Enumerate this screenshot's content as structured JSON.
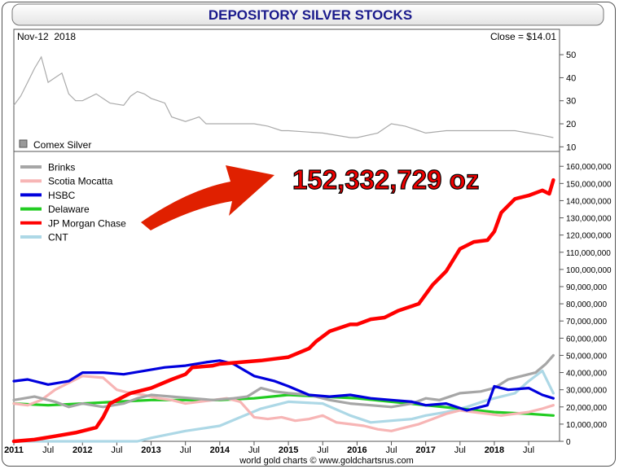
{
  "chart_data": [
    {
      "type": "line",
      "panel": "price",
      "date_label": "Nov-12  2018",
      "close_label": "Close = $14.01",
      "legend": [
        {
          "name": "Comex Silver",
          "color": "#999999"
        }
      ],
      "ylim": [
        8,
        55
      ],
      "yticks": [
        10,
        20,
        30,
        40,
        50
      ],
      "series": [
        {
          "name": "Comex Silver",
          "color": "#aaaaaa",
          "x": [
            2011.0,
            2011.1,
            2011.2,
            2011.3,
            2011.4,
            2011.5,
            2011.6,
            2011.7,
            2011.8,
            2011.9,
            2012.0,
            2012.2,
            2012.4,
            2012.6,
            2012.7,
            2012.8,
            2012.9,
            2013.0,
            2013.1,
            2013.2,
            2013.3,
            2013.5,
            2013.6,
            2013.7,
            2013.8,
            2014.0,
            2014.3,
            2014.5,
            2014.7,
            2014.9,
            2015.0,
            2015.5,
            2015.9,
            2016.0,
            2016.3,
            2016.5,
            2016.7,
            2016.9,
            2017.0,
            2017.3,
            2017.5,
            2017.7,
            2018.0,
            2018.3,
            2018.5,
            2018.7,
            2018.86
          ],
          "values": [
            28,
            32,
            38,
            44,
            49,
            38,
            40,
            42,
            33,
            30,
            30,
            33,
            29,
            28,
            32,
            34,
            33,
            31,
            30,
            29,
            23,
            21,
            22,
            23,
            20,
            20,
            20,
            20,
            19,
            17,
            17,
            16,
            14,
            14,
            16,
            20,
            19,
            17,
            16,
            17,
            17,
            17,
            17,
            17,
            16,
            15,
            14
          ]
        }
      ]
    },
    {
      "type": "line",
      "panel": "stocks",
      "title": "DEPOSITORY SILVER STOCKS",
      "annotation": "152,332,729 oz",
      "ylim": [
        0,
        162000000
      ],
      "yticks": [
        "0",
        "10,000,000",
        "20,000,000",
        "30,000,000",
        "40,000,000",
        "50,000,000",
        "60,000,000",
        "70,000,000",
        "80,000,000",
        "90,000,000",
        "100,000,000",
        "110,000,000",
        "120,000,000",
        "130,000,000",
        "140,000,000",
        "150,000,000",
        "160,000,000"
      ],
      "ytick_values": [
        0,
        10000000,
        20000000,
        30000000,
        40000000,
        50000000,
        60000000,
        70000000,
        80000000,
        90000000,
        100000000,
        110000000,
        120000000,
        130000000,
        140000000,
        150000000,
        160000000
      ],
      "xlim": [
        2011.0,
        2018.95
      ],
      "xticks": [
        {
          "label": "2011",
          "x": 2011.0,
          "bold": true
        },
        {
          "label": "Jul",
          "x": 2011.5,
          "bold": false
        },
        {
          "label": "2012",
          "x": 2012.0,
          "bold": true
        },
        {
          "label": "Jul",
          "x": 2012.5,
          "bold": false
        },
        {
          "label": "2013",
          "x": 2013.0,
          "bold": true
        },
        {
          "label": "Jul",
          "x": 2013.5,
          "bold": false
        },
        {
          "label": "2014",
          "x": 2014.0,
          "bold": true
        },
        {
          "label": "Jul",
          "x": 2014.5,
          "bold": false
        },
        {
          "label": "2015",
          "x": 2015.0,
          "bold": true
        },
        {
          "label": "Jul",
          "x": 2015.5,
          "bold": false
        },
        {
          "label": "2016",
          "x": 2016.0,
          "bold": true
        },
        {
          "label": "Jul",
          "x": 2016.5,
          "bold": false
        },
        {
          "label": "2017",
          "x": 2017.0,
          "bold": true
        },
        {
          "label": "Jul",
          "x": 2017.5,
          "bold": false
        },
        {
          "label": "2018",
          "x": 2018.0,
          "bold": true
        },
        {
          "label": "Jul",
          "x": 2018.5,
          "bold": false
        }
      ],
      "series": [
        {
          "name": "Brinks",
          "color": "#a6a6a6",
          "x": [
            2011.0,
            2011.3,
            2011.6,
            2011.8,
            2012.0,
            2012.3,
            2012.6,
            2012.8,
            2013.0,
            2013.3,
            2013.6,
            2013.9,
            2014.2,
            2014.4,
            2014.6,
            2014.8,
            2015.0,
            2015.3,
            2015.6,
            2015.9,
            2016.2,
            2016.5,
            2016.8,
            2017.0,
            2017.2,
            2017.5,
            2017.8,
            2018.0,
            2018.2,
            2018.4,
            2018.6,
            2018.75,
            2018.86
          ],
          "values": [
            24000000,
            26000000,
            23000000,
            20000000,
            22000000,
            20000000,
            22000000,
            25000000,
            27000000,
            26000000,
            25000000,
            24000000,
            25000000,
            26000000,
            31000000,
            29000000,
            28000000,
            27000000,
            24000000,
            22000000,
            21000000,
            20000000,
            22000000,
            25000000,
            24000000,
            28000000,
            29000000,
            31000000,
            36000000,
            38000000,
            40000000,
            45000000,
            50000000
          ]
        },
        {
          "name": "Scotia Mocatta",
          "color": "#f7b5b5",
          "x": [
            2011.0,
            2011.2,
            2011.4,
            2011.6,
            2011.8,
            2012.0,
            2012.3,
            2012.5,
            2012.7,
            2012.9,
            2013.1,
            2013.3,
            2013.5,
            2013.7,
            2013.9,
            2014.1,
            2014.3,
            2014.5,
            2014.7,
            2014.9,
            2015.1,
            2015.3,
            2015.5,
            2015.7,
            2015.9,
            2016.1,
            2016.3,
            2016.5,
            2016.7,
            2016.9,
            2017.1,
            2017.3,
            2017.5,
            2017.7,
            2017.9,
            2018.1,
            2018.3,
            2018.5,
            2018.7,
            2018.86
          ],
          "values": [
            22000000,
            21000000,
            24000000,
            30000000,
            34000000,
            38000000,
            37000000,
            30000000,
            28000000,
            27000000,
            25000000,
            24000000,
            22000000,
            23000000,
            24000000,
            25000000,
            23000000,
            14000000,
            13000000,
            14000000,
            12000000,
            13000000,
            15000000,
            11000000,
            10000000,
            9000000,
            7000000,
            6000000,
            8000000,
            10000000,
            13000000,
            16000000,
            18000000,
            17000000,
            16000000,
            15000000,
            16000000,
            17000000,
            19000000,
            21000000
          ]
        },
        {
          "name": "HSBC",
          "color": "#0000dd",
          "x": [
            2011.0,
            2011.2,
            2011.5,
            2011.8,
            2012.0,
            2012.3,
            2012.6,
            2012.9,
            2013.2,
            2013.5,
            2013.8,
            2014.0,
            2014.2,
            2014.5,
            2014.8,
            2015.0,
            2015.3,
            2015.6,
            2015.9,
            2016.2,
            2016.5,
            2016.8,
            2017.0,
            2017.3,
            2017.6,
            2017.9,
            2018.0,
            2018.2,
            2018.5,
            2018.7,
            2018.86
          ],
          "values": [
            35000000,
            36000000,
            33000000,
            35000000,
            40000000,
            40000000,
            39000000,
            41000000,
            43000000,
            44000000,
            46000000,
            47000000,
            45000000,
            38000000,
            35000000,
            32000000,
            27000000,
            26000000,
            27000000,
            25000000,
            24000000,
            23000000,
            21000000,
            22000000,
            18000000,
            21000000,
            32000000,
            30000000,
            31000000,
            27000000,
            25000000
          ]
        },
        {
          "name": "Delaware",
          "color": "#22cc22",
          "x": [
            2011.0,
            2011.5,
            2012.0,
            2012.5,
            2013.0,
            2013.5,
            2014.0,
            2014.5,
            2015.0,
            2015.5,
            2016.0,
            2016.5,
            2017.0,
            2017.5,
            2018.0,
            2018.5,
            2018.86
          ],
          "values": [
            22000000,
            21000000,
            22000000,
            23000000,
            24000000,
            24000000,
            24000000,
            25000000,
            27000000,
            26000000,
            25000000,
            23000000,
            21000000,
            19000000,
            17000000,
            16000000,
            15000000
          ]
        },
        {
          "name": "JP Morgan Chase",
          "color": "#ff0000",
          "x": [
            2011.0,
            2011.3,
            2011.6,
            2011.9,
            2012.2,
            2012.3,
            2012.4,
            2012.7,
            2013.0,
            2013.3,
            2013.5,
            2013.6,
            2013.9,
            2014.0,
            2014.3,
            2014.6,
            2014.8,
            2015.0,
            2015.3,
            2015.4,
            2015.6,
            2015.9,
            2016.0,
            2016.2,
            2016.4,
            2016.6,
            2016.9,
            2017.1,
            2017.3,
            2017.5,
            2017.7,
            2017.9,
            2018.0,
            2018.1,
            2018.3,
            2018.5,
            2018.7,
            2018.8,
            2018.86
          ],
          "values": [
            0,
            1000000,
            3000000,
            5000000,
            8000000,
            14000000,
            22000000,
            28000000,
            31000000,
            36000000,
            39000000,
            43000000,
            44000000,
            45000000,
            46000000,
            47000000,
            48000000,
            49000000,
            54000000,
            58000000,
            64000000,
            68000000,
            68000000,
            71000000,
            72000000,
            76000000,
            80000000,
            91000000,
            99000000,
            112000000,
            116000000,
            117000000,
            122000000,
            133000000,
            141000000,
            143000000,
            146000000,
            144000000,
            152000000
          ]
        },
        {
          "name": "CNT",
          "color": "#add8e6",
          "x": [
            2011.0,
            2012.0,
            2012.8,
            2013.0,
            2013.5,
            2014.0,
            2014.3,
            2014.6,
            2015.0,
            2015.5,
            2015.9,
            2016.2,
            2016.5,
            2016.8,
            2017.0,
            2017.3,
            2017.6,
            2017.9,
            2018.1,
            2018.3,
            2018.5,
            2018.7,
            2018.86
          ],
          "values": [
            0,
            0,
            0,
            2000000,
            6000000,
            9000000,
            14000000,
            19000000,
            23000000,
            22000000,
            15000000,
            11000000,
            12000000,
            13000000,
            15000000,
            17000000,
            20000000,
            24000000,
            26000000,
            28000000,
            35000000,
            41000000,
            28000000
          ]
        }
      ]
    }
  ],
  "footer": "world gold charts © www.goldchartsrus.com"
}
